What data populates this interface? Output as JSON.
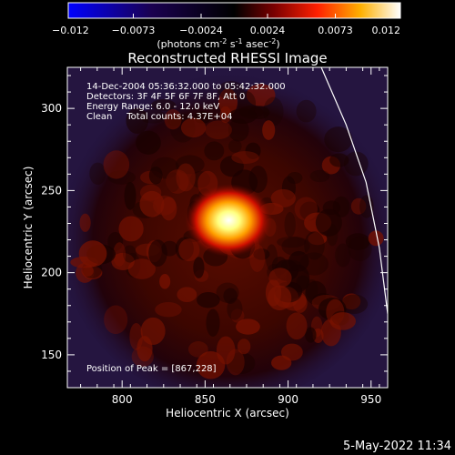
{
  "chart_data": {
    "type": "heatmap",
    "title": "Reconstructed RHESSI Image",
    "xlabel": "Heliocentric X (arcsec)",
    "ylabel": "Heliocentric Y (arcsec)",
    "xlim": [
      767,
      960
    ],
    "ylim": [
      130,
      325
    ],
    "x_ticks": [
      800,
      850,
      900,
      950
    ],
    "x_tick_labels": [
      "800",
      "850",
      "900",
      "950"
    ],
    "y_ticks": [
      150,
      200,
      250,
      300
    ],
    "y_tick_labels": [
      "150",
      "200",
      "250",
      "300"
    ],
    "colorbar": {
      "min": -0.012,
      "max": 0.012,
      "ticks": [
        -0.012,
        -0.0073,
        -0.0024,
        0.0024,
        0.0073,
        0.012
      ],
      "tick_labels": [
        "−0.012",
        "−0.0073",
        "−0.0024",
        "0.0024",
        "0.0073",
        "0.012"
      ],
      "unit_main": "(photons cm",
      "unit_exp1": "-2",
      "unit_mid": " s",
      "unit_exp2": "-1",
      "unit_mid2": " asec",
      "unit_exp3": "-2",
      "unit_end": ")",
      "colors": [
        "#0000ff",
        "#000000",
        "#ff0000",
        "#ffff00",
        "#ffffff"
      ]
    },
    "annotations": [
      "14-Dec-2004 05:36:32.000 to 05:42:32.000",
      "Detectors: 3F 4F 5F 6F 7F 8F, Att 0",
      "Energy Range: 6.0 - 12.0 keV",
      "Clean     Total counts: 4.37E+04"
    ],
    "peak_label": "Position of Peak = [867,228]",
    "peak": {
      "x": 867,
      "y": 228
    },
    "limb_points": [
      [
        920,
        325
      ],
      [
        935,
        290
      ],
      [
        947,
        255
      ],
      [
        955,
        215
      ],
      [
        960,
        175
      ]
    ]
  },
  "footer": {
    "date": "5-May-2022 11:34"
  }
}
